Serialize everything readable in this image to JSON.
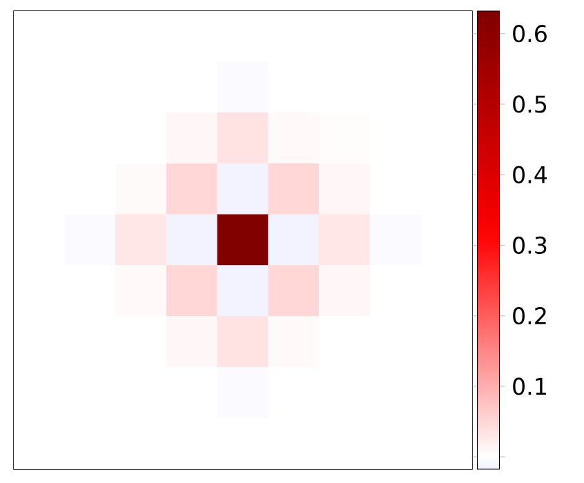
{
  "chart_data": {
    "type": "heatmap",
    "categories": [
      null,
      null,
      null,
      null,
      null,
      null,
      null,
      null,
      null
    ],
    "y_categories": [
      null,
      null,
      null,
      null,
      null,
      null,
      null,
      null,
      null
    ],
    "cells": [
      [
        0,
        0,
        0,
        0,
        0,
        0,
        0,
        0,
        0
      ],
      [
        0,
        0,
        0,
        0,
        -0.005,
        0,
        0,
        0,
        0
      ],
      [
        0,
        0,
        0,
        0.01,
        0.035,
        0.008,
        0.004,
        0,
        0
      ],
      [
        0,
        0,
        0.006,
        0.05,
        -0.015,
        0.05,
        0.01,
        0,
        0
      ],
      [
        0,
        -0.005,
        0.03,
        -0.015,
        0.63,
        -0.015,
        0.03,
        -0.005,
        0
      ],
      [
        0,
        0,
        0.008,
        0.05,
        -0.015,
        0.05,
        0.01,
        0,
        0
      ],
      [
        0,
        0,
        0,
        0.01,
        0.035,
        0.008,
        0,
        0,
        0
      ],
      [
        0,
        0,
        0,
        0,
        -0.005,
        0,
        0,
        0,
        0
      ],
      [
        0,
        0,
        0,
        0,
        0,
        0,
        0,
        0,
        0
      ]
    ],
    "clim": [
      -0.0175,
      0.632
    ],
    "cticks": [
      {
        "value": 0,
        "label": null
      },
      0.1,
      0.2,
      0.3,
      0.4,
      0.5,
      0.6
    ]
  }
}
